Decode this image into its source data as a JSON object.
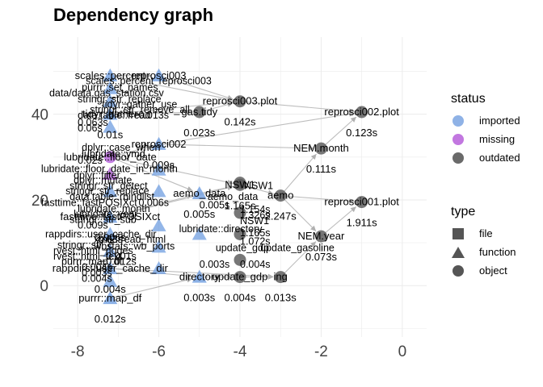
{
  "title": "Dependency graph",
  "x_ticks": [
    "-8",
    "-6",
    "-4",
    "-2",
    "0"
  ],
  "y_ticks": [
    "40",
    "20",
    "0"
  ],
  "colors": {
    "imported": "#6f9ee0",
    "missing": "#b35fd9",
    "outdated": "#555555",
    "grid": "#ebebeb",
    "edge": "#bdbdbd"
  },
  "legend": {
    "status_title": "status",
    "status": [
      {
        "label": "imported",
        "color": "#8fb2e6"
      },
      {
        "label": "missing",
        "color": "#c277e0"
      },
      {
        "label": "outdated",
        "color": "#6a6a6a"
      }
    ],
    "type_title": "type",
    "types": [
      {
        "label": "file",
        "shape": "square"
      },
      {
        "label": "function",
        "shape": "triangle"
      },
      {
        "label": "object",
        "shape": "circle"
      }
    ]
  },
  "nodes": [
    {
      "id": "reprosci003.plot",
      "label": "reprosci003.plot",
      "time": "0.142s",
      "x": -4.0,
      "y": 43.0,
      "status": "outdated",
      "type": "object"
    },
    {
      "id": "reprosci002.plot",
      "label": "reprosci002.plot",
      "time": "0.123s",
      "x": -1.0,
      "y": 40.5,
      "status": "outdated",
      "type": "object"
    },
    {
      "id": "gas.tidy",
      "label": "gas.tidy",
      "time": "0.023s",
      "x": -5.0,
      "y": 40.5,
      "status": "outdated",
      "type": "object"
    },
    {
      "id": "NEM.month",
      "label": "NEM.month",
      "time": "0.111s",
      "x": -2.0,
      "y": 32.0,
      "status": "outdated",
      "type": "object"
    },
    {
      "id": "aemo",
      "label": "aemo",
      "time": "2.247s",
      "x": -3.0,
      "y": 21.0,
      "status": "outdated",
      "type": "object"
    },
    {
      "id": "reprosci001.plot",
      "label": "reprosci001.plot",
      "time": "1.911s",
      "x": -1.0,
      "y": 19.5,
      "status": "outdated",
      "type": "object"
    },
    {
      "id": "NEM.year",
      "label": "NEM.year",
      "time": "0.073s",
      "x": -2.0,
      "y": 11.5,
      "status": "outdated",
      "type": "object"
    },
    {
      "id": "ing",
      "label": "ing",
      "time": "0.013s",
      "x": -3.0,
      "y": 2.0,
      "status": "outdated",
      "type": "object"
    },
    {
      "id": "NSW1",
      "label": "NSW1",
      "time": "1.165s",
      "x": -4.0,
      "y": 23.5,
      "status": "outdated",
      "type": "object"
    },
    {
      "id": "update_gdp",
      "label": "update_gdp",
      "time": "0.004s",
      "x": -4.0,
      "y": 2.0,
      "status": "outdated",
      "type": "object"
    },
    {
      "id": "reprosci003",
      "label": "reprosci003",
      "time": "",
      "x": -6.0,
      "y": 49.0,
      "status": "imported",
      "type": "function"
    },
    {
      "id": "reprosci002",
      "label": "reprosci002",
      "time": "0.009s",
      "x": -6.0,
      "y": 33.0,
      "status": "imported",
      "type": "function"
    },
    {
      "id": "aemo_data",
      "label": "aemo_data",
      "time": "0.005s",
      "x": -5.0,
      "y": 21.5,
      "status": "imported",
      "type": "function"
    },
    {
      "id": "directory",
      "label": "directory",
      "time": "0.003s",
      "x": -5.0,
      "y": 2.0,
      "status": "imported",
      "type": "function"
    },
    {
      "id": "scales::percent",
      "label": "scales::percent",
      "time": "",
      "x": -7.2,
      "y": 49.0,
      "status": "imported",
      "type": "function"
    },
    {
      "id": "tidyr::gather",
      "label": "tidyr::gather",
      "time": "0.01s",
      "x": -7.2,
      "y": 40.0,
      "status": "imported",
      "type": "function"
    },
    {
      "id": "lubridate",
      "label": "lubridate::floor_date",
      "time": "",
      "x": -7.2,
      "y": 30.0,
      "status": "missing",
      "type": "object"
    },
    {
      "id": "fasttime",
      "label": "fasttime::fastPOSIXct",
      "time": "0.006s",
      "x": -7.2,
      "y": 16.0,
      "status": "imported",
      "type": "function"
    },
    {
      "id": "rappdirs",
      "label": "rappdirs::user_cache_dir",
      "time": "0.004s",
      "x": -7.2,
      "y": 4.0,
      "status": "imported",
      "type": "function"
    },
    {
      "id": "purrr",
      "label": "purrr::map_df",
      "time": "0.012s",
      "x": -7.2,
      "y": -3.0,
      "status": "imported",
      "type": "function"
    }
  ],
  "labels": [
    {
      "text": "scales::percent",
      "x": -7.8,
      "y": 47.0
    },
    {
      "text": "reprosci003",
      "x": -6.0,
      "y": 47.0
    },
    {
      "text": "purrr::set_names",
      "x": -7.9,
      "y": 45.5
    },
    {
      "text": "data/data.gas_station.csv",
      "x": -8.7,
      "y": 44.2
    },
    {
      "text": "stringr::str_replace",
      "x": -8.0,
      "y": 42.8
    },
    {
      "text": "tidyr::gather_use",
      "x": -7.4,
      "y": 41.5
    },
    {
      "text": "stringr::str_remove_all",
      "x": -7.7,
      "y": 40.3
    },
    {
      "text": "data.table::fread",
      "x": -8.0,
      "y": 39.0
    },
    {
      "text": "0.013s",
      "x": -6.5,
      "y": 39.0
    },
    {
      "text": "0.063s",
      "x": -8.0,
      "y": 37.3
    },
    {
      "text": "0.06s",
      "x": -8.0,
      "y": 36.0
    },
    {
      "text": "dplyr::case_when",
      "x": -7.9,
      "y": 31.5
    },
    {
      "text": "lubridate::ymd",
      "x": -7.9,
      "y": 30.0
    },
    {
      "text": "0.02s",
      "x": -8.0,
      "y": 28.5
    },
    {
      "text": "lubridate::floor_date_in_month",
      "x": -8.9,
      "y": 26.5
    },
    {
      "text": "dplyr::filter",
      "x": -8.1,
      "y": 25.0
    },
    {
      "text": "dplyr::mutate",
      "x": -8.1,
      "y": 23.8
    },
    {
      "text": "stringr::str_detect",
      "x": -8.2,
      "y": 22.5
    },
    {
      "text": "stringr::str_replace",
      "x": -8.3,
      "y": 21.3
    },
    {
      "text": "data.table::rbindlist",
      "x": -8.2,
      "y": 20.0
    },
    {
      "text": "fasttime::fastPOSIXct",
      "x": -8.9,
      "y": 18.6
    },
    {
      "text": "0.006s",
      "x": -6.5,
      "y": 18.6
    },
    {
      "text": "lubridate::month",
      "x": -8.0,
      "y": 17.2
    },
    {
      "text": "lubridate::year",
      "x": -8.1,
      "y": 15.9
    },
    {
      "text": "stringr::str_sub",
      "x": -8.2,
      "y": 14.6
    },
    {
      "text": "0.009s",
      "x": -8.0,
      "y": 13.3
    },
    {
      "text": "rappdirs::user_cache_dir",
      "x": -8.8,
      "y": 11.2
    },
    {
      "text": "0.03s",
      "x": -7.5,
      "y": 10.0
    },
    {
      "text": "stringr::str_c",
      "x": -8.5,
      "y": 8.7
    },
    {
      "text": "rvest::html_nodes",
      "x": -8.6,
      "y": 7.4
    },
    {
      "text": "rvest::html_text",
      "x": -8.6,
      "y": 6.1
    },
    {
      "text": "0.001s",
      "x": -7.3,
      "y": 6.1
    },
    {
      "text": "purrr::map_df",
      "x": -8.4,
      "y": 4.8
    },
    {
      "text": "0.012s",
      "x": -7.3,
      "y": 4.8
    },
    {
      "text": "0.004s",
      "x": -7.9,
      "y": 3.5
    },
    {
      "text": "0.003s",
      "x": -7.9,
      "y": 2.2
    },
    {
      "text": "0.004s",
      "x": -7.9,
      "y": 0.9
    },
    {
      "text": "xml2::read_html",
      "x": -7.6,
      "y": 10.0
    },
    {
      "text": "wbstats::wb_ports",
      "x": -7.6,
      "y": 8.4
    },
    {
      "text": "1.072s",
      "x": -4.0,
      "y": 9.5
    },
    {
      "text": "update_gdp",
      "x": -4.6,
      "y": 8.0
    },
    {
      "text": "update_gasoline",
      "x": -3.5,
      "y": 8.0
    },
    {
      "text": "0.004s",
      "x": -4.0,
      "y": 4.2
    },
    {
      "text": "1.154s",
      "x": -4.0,
      "y": 17.0
    },
    {
      "text": "1.326s",
      "x": -4.0,
      "y": 15.7
    },
    {
      "text": "1.165s",
      "x": -4.0,
      "y": 11.5
    },
    {
      "text": "NSW1",
      "x": -3.9,
      "y": 22.5
    },
    {
      "text": "NSW1",
      "x": -4.0,
      "y": 14.3
    },
    {
      "text": "lubridate::directory",
      "x": -5.5,
      "y": 12.5
    },
    {
      "text": "0.005s",
      "x": -5.0,
      "y": 18.0
    },
    {
      "text": "aemo_data",
      "x": -4.8,
      "y": 20.0
    },
    {
      "text": "0.003s",
      "x": -5.0,
      "y": 4.2
    }
  ],
  "edges": [
    [
      "scales::percent",
      "reprosci003"
    ],
    [
      "reprosci003",
      "reprosci003.plot"
    ],
    [
      "tidyr::gather",
      "gas.tidy"
    ],
    [
      "gas.tidy",
      "reprosci003.plot"
    ],
    [
      "reprosci003.plot",
      "reprosci002.plot"
    ],
    [
      "reprosci002",
      "reprosci002.plot"
    ],
    [
      "NEM.month",
      "reprosci002.plot"
    ],
    [
      "aemo",
      "NEM.month"
    ],
    [
      "aemo",
      "NEM.year"
    ],
    [
      "aemo",
      "reprosci001.plot"
    ],
    [
      "NEM.year",
      "reprosci001.plot"
    ],
    [
      "NSW1",
      "aemo"
    ],
    [
      "aemo_data",
      "NSW1"
    ],
    [
      "ing",
      "NEM.year"
    ],
    [
      "update_gdp",
      "ing"
    ],
    [
      "directory",
      "update_gdp"
    ],
    [
      "lubridate",
      "reprosci002"
    ],
    [
      "lubridate",
      "aemo_data"
    ],
    [
      "fasttime",
      "aemo_data"
    ],
    [
      "rappdirs",
      "directory"
    ],
    [
      "purrr",
      "directory"
    ],
    [
      "scales::percent",
      "reprosci003.plot"
    ],
    [
      "tidyr::gather",
      "reprosci003.plot"
    ],
    [
      "reprosci002",
      "NEM.month"
    ],
    [
      "lubridate",
      "NSW1"
    ],
    [
      "fasttime",
      "NSW1"
    ],
    [
      "rappdirs",
      "ing"
    ]
  ]
}
